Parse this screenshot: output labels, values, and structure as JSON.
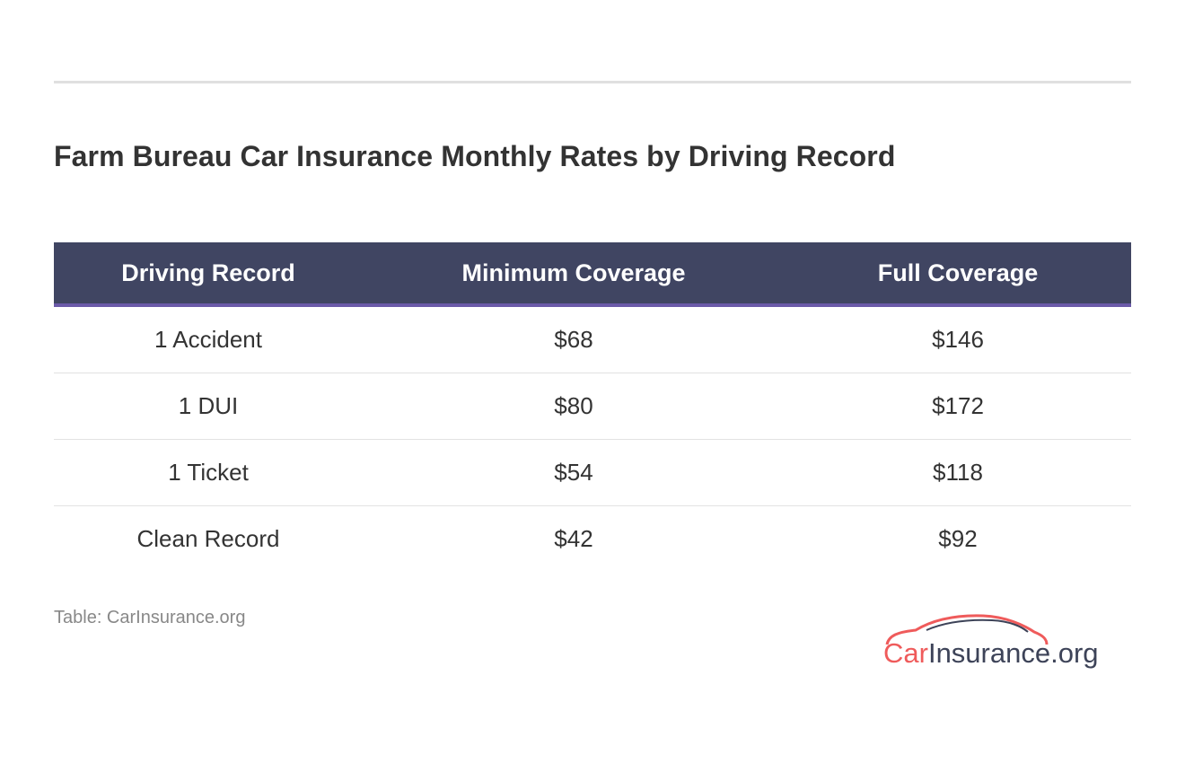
{
  "title": "Farm Bureau Car Insurance Monthly Rates by Driving Record",
  "table": {
    "header": [
      "Driving Record",
      "Minimum Coverage",
      "Full Coverage"
    ],
    "rows": [
      [
        "1 Accident",
        "$68",
        "$146"
      ],
      [
        "1 DUI",
        "$80",
        "$172"
      ],
      [
        "1 Ticket",
        "$54",
        "$118"
      ],
      [
        "Clean Record",
        "$42",
        "$92"
      ]
    ]
  },
  "source": "Table: CarInsurance.org",
  "logo": {
    "parts": [
      "Car",
      "Insurance.org"
    ]
  }
}
